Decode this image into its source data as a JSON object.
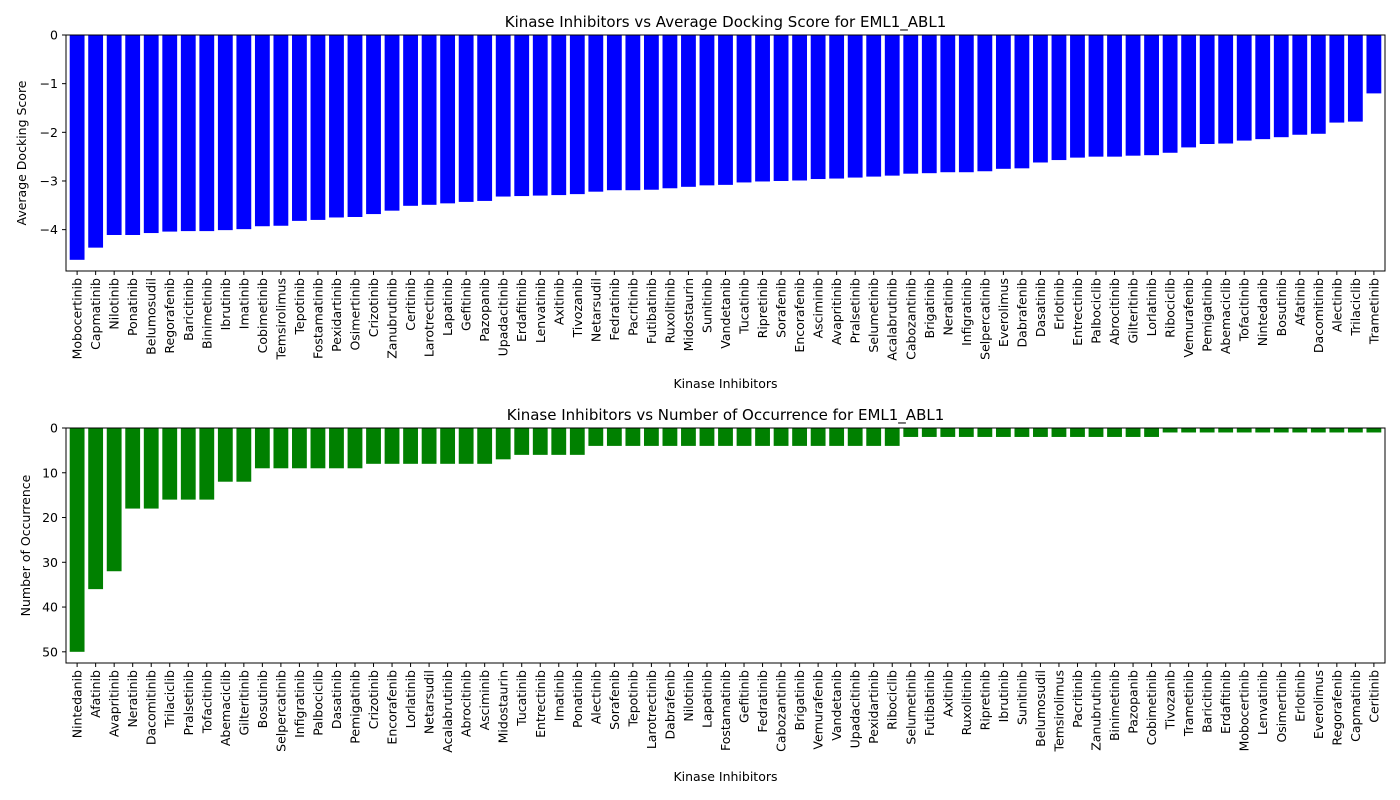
{
  "chart_data": [
    {
      "type": "bar",
      "title": "Kinase Inhibitors vs Average Docking Score for EML1_ABL1",
      "xlabel": "Kinase Inhibitors",
      "ylabel": "Average Docking Score",
      "color": "#0000ff",
      "ylim": [
        -4.85,
        0
      ],
      "yticks": [
        0,
        -1,
        -2,
        -3,
        -4
      ],
      "inverted": false,
      "grid": false,
      "categories": [
        "Mobocertinib",
        "Capmatinib",
        "Nilotinib",
        "Ponatinib",
        "Belumosudil",
        "Regorafenib",
        "Baricitinib",
        "Binimetinib",
        "Ibrutinib",
        "Imatinib",
        "Cobimetinib",
        "Temsirolimus",
        "Tepotinib",
        "Fostamatinib",
        "Pexidartinib",
        "Osimertinib",
        "Crizotinib",
        "Zanubrutinib",
        "Ceritinib",
        "Larotrectinib",
        "Lapatinib",
        "Gefitinib",
        "Pazopanib",
        "Upadacitinib",
        "Erdafitinib",
        "Lenvatinib",
        "Axitinib",
        "Tivozanib",
        "Netarsudil",
        "Fedratinib",
        "Pacritinib",
        "Futibatinib",
        "Ruxolitinib",
        "Midostaurin",
        "Sunitinib",
        "Vandetanib",
        "Tucatinib",
        "Ripretinib",
        "Sorafenib",
        "Encorafenib",
        "Asciminib",
        "Avapritinib",
        "Pralsetinib",
        "Selumetinib",
        "Acalabrutinib",
        "Cabozantinib",
        "Brigatinib",
        "Neratinib",
        "Infigratinib",
        "Selpercatinib",
        "Everolimus",
        "Dabrafenib",
        "Dasatinib",
        "Erlotinib",
        "Entrectinib",
        "Palbociclib",
        "Abrocitinib",
        "Gilteritinib",
        "Lorlatinib",
        "Ribociclib",
        "Vemurafenib",
        "Pemigatinib",
        "Abemaciclib",
        "Tofacitinib",
        "Nintedanib",
        "Bosutinib",
        "Afatinib",
        "Dacomitinib",
        "Alectinib",
        "Trilaciclib",
        "Trametinib"
      ],
      "values": [
        -4.62,
        -4.37,
        -4.11,
        -4.11,
        -4.07,
        -4.04,
        -4.03,
        -4.03,
        -4.01,
        -3.99,
        -3.93,
        -3.92,
        -3.82,
        -3.8,
        -3.75,
        -3.74,
        -3.68,
        -3.61,
        -3.51,
        -3.49,
        -3.46,
        -3.43,
        -3.41,
        -3.32,
        -3.31,
        -3.3,
        -3.29,
        -3.27,
        -3.22,
        -3.19,
        -3.19,
        -3.18,
        -3.15,
        -3.12,
        -3.09,
        -3.08,
        -3.03,
        -3.01,
        -3.0,
        -2.99,
        -2.96,
        -2.95,
        -2.93,
        -2.91,
        -2.89,
        -2.85,
        -2.84,
        -2.82,
        -2.82,
        -2.8,
        -2.75,
        -2.74,
        -2.62,
        -2.57,
        -2.52,
        -2.5,
        -2.5,
        -2.48,
        -2.47,
        -2.42,
        -2.31,
        -2.24,
        -2.23,
        -2.17,
        -2.14,
        -2.1,
        -2.05,
        -2.03,
        -1.8,
        -1.78,
        -1.2
      ]
    },
    {
      "type": "bar",
      "title": "Kinase Inhibitors vs Number of Occurrence for EML1_ABL1",
      "xlabel": "Kinase Inhibitors",
      "ylabel": "Number of Occurrence",
      "color": "#008000",
      "ylim": [
        0,
        52.5
      ],
      "yticks": [
        0,
        10,
        20,
        30,
        40,
        50
      ],
      "inverted": true,
      "grid": false,
      "categories": [
        "Nintedanib",
        "Afatinib",
        "Avapritinib",
        "Neratinib",
        "Dacomitinib",
        "Trilaciclib",
        "Pralsetinib",
        "Tofacitinib",
        "Abemaciclib",
        "Gilteritinib",
        "Bosutinib",
        "Selpercatinib",
        "Infigratinib",
        "Palbociclib",
        "Dasatinib",
        "Pemigatinib",
        "Crizotinib",
        "Encorafenib",
        "Lorlatinib",
        "Netarsudil",
        "Acalabrutinib",
        "Abrocitinib",
        "Asciminib",
        "Midostaurin",
        "Tucatinib",
        "Entrectinib",
        "Imatinib",
        "Ponatinib",
        "Alectinib",
        "Sorafenib",
        "Tepotinib",
        "Larotrectinib",
        "Dabrafenib",
        "Nilotinib",
        "Lapatinib",
        "Fostamatinib",
        "Gefitinib",
        "Fedratinib",
        "Cabozantinib",
        "Brigatinib",
        "Vemurafenib",
        "Vandetanib",
        "Upadacitinib",
        "Pexidartinib",
        "Ribociclib",
        "Selumetinib",
        "Futibatinib",
        "Axitinib",
        "Ruxolitinib",
        "Ripretinib",
        "Ibrutinib",
        "Sunitinib",
        "Belumosudil",
        "Temsirolimus",
        "Pacritinib",
        "Zanubrutinib",
        "Binimetinib",
        "Pazopanib",
        "Cobimetinib",
        "Tivozanib",
        "Trametinib",
        "Baricitinib",
        "Erdafitinib",
        "Mobocertinib",
        "Lenvatinib",
        "Osimertinib",
        "Erlotinib",
        "Everolimus",
        "Regorafenib",
        "Capmatinib",
        "Ceritinib"
      ],
      "values": [
        50,
        36,
        32,
        18,
        18,
        16,
        16,
        16,
        12,
        12,
        9,
        9,
        9,
        9,
        9,
        9,
        8,
        8,
        8,
        8,
        8,
        8,
        8,
        7,
        6,
        6,
        6,
        6,
        4,
        4,
        4,
        4,
        4,
        4,
        4,
        4,
        4,
        4,
        4,
        4,
        4,
        4,
        4,
        4,
        4,
        2,
        2,
        2,
        2,
        2,
        2,
        2,
        2,
        2,
        2,
        2,
        2,
        2,
        2,
        1,
        1,
        1,
        1,
        1,
        1,
        1,
        1,
        1,
        1,
        1,
        1
      ]
    }
  ]
}
